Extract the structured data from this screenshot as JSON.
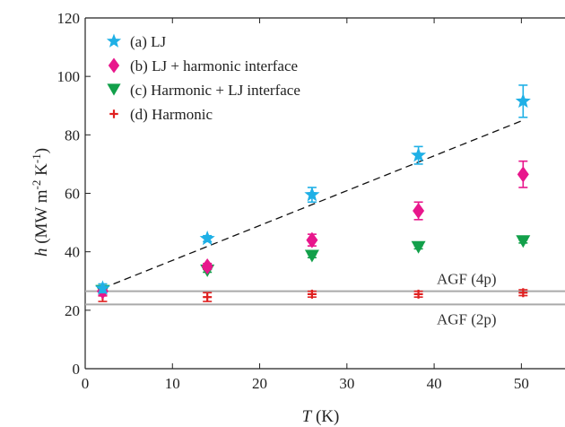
{
  "chart_data": {
    "type": "scatter",
    "xlabel": {
      "symbol": "T",
      "unit": "(K)"
    },
    "ylabel": {
      "symbol": "h",
      "unit_pre": "(MW m",
      "exp1": "-2",
      "unit_mid": " K",
      "exp2": "-1",
      "unit_post": ")"
    },
    "xlim": [
      0,
      55
    ],
    "ylim": [
      0,
      120
    ],
    "xticks": [
      0,
      10,
      20,
      30,
      40,
      50
    ],
    "yticks": [
      0,
      20,
      40,
      60,
      80,
      100,
      120
    ],
    "grid": false,
    "legend_position": "top-left",
    "series": [
      {
        "name": "(a) LJ",
        "marker": "star",
        "color": "#1fb0e6",
        "points": [
          {
            "x": 2,
            "y": 27.5,
            "err": 1.5
          },
          {
            "x": 14,
            "y": 44.5,
            "err": 1.0
          },
          {
            "x": 26,
            "y": 59.5,
            "err": 2.5
          },
          {
            "x": 38.2,
            "y": 73,
            "err": 3.0
          },
          {
            "x": 50.2,
            "y": 91.5,
            "err": 5.5
          }
        ]
      },
      {
        "name": "(b) LJ + harmonic interface",
        "marker": "diamond",
        "color": "#e8168c",
        "points": [
          {
            "x": 2,
            "y": 26.5,
            "err": 1.5
          },
          {
            "x": 14,
            "y": 35,
            "err": 1.0
          },
          {
            "x": 26,
            "y": 44,
            "err": 2.0
          },
          {
            "x": 38.2,
            "y": 54,
            "err": 3.0
          },
          {
            "x": 50.2,
            "y": 66.5,
            "err": 4.5
          }
        ]
      },
      {
        "name": "(c) Harmonic + LJ interface",
        "marker": "triangle-down",
        "color": "#12a04a",
        "points": [
          {
            "x": 2,
            "y": 26.5,
            "err": 0.5
          },
          {
            "x": 14,
            "y": 33.5,
            "err": 0.5
          },
          {
            "x": 26,
            "y": 38.5,
            "err": 0.5
          },
          {
            "x": 38.2,
            "y": 41.5,
            "err": 0.5
          },
          {
            "x": 50.2,
            "y": 43.5,
            "err": 0.5
          }
        ]
      },
      {
        "name": "(d) Harmonic",
        "marker": "plus",
        "color": "#e02020",
        "points": [
          {
            "x": 2,
            "y": 25,
            "err": 2.0
          },
          {
            "x": 14,
            "y": 24.5,
            "err": 1.5
          },
          {
            "x": 26,
            "y": 25.5,
            "err": 1.0
          },
          {
            "x": 38.2,
            "y": 25.5,
            "err": 1.0
          },
          {
            "x": 50.2,
            "y": 26,
            "err": 1.0
          }
        ]
      }
    ],
    "fit_line": {
      "style": "dashed",
      "color": "#111111",
      "x": [
        2,
        50.2
      ],
      "y": [
        27.5,
        85
      ]
    },
    "reference_lines": [
      {
        "label": "AGF (4p)",
        "y": 26.5,
        "color": "#aaaaaa",
        "label_side": "above"
      },
      {
        "label": "AGF (2p)",
        "y": 22,
        "color": "#aaaaaa",
        "label_side": "below"
      }
    ]
  }
}
